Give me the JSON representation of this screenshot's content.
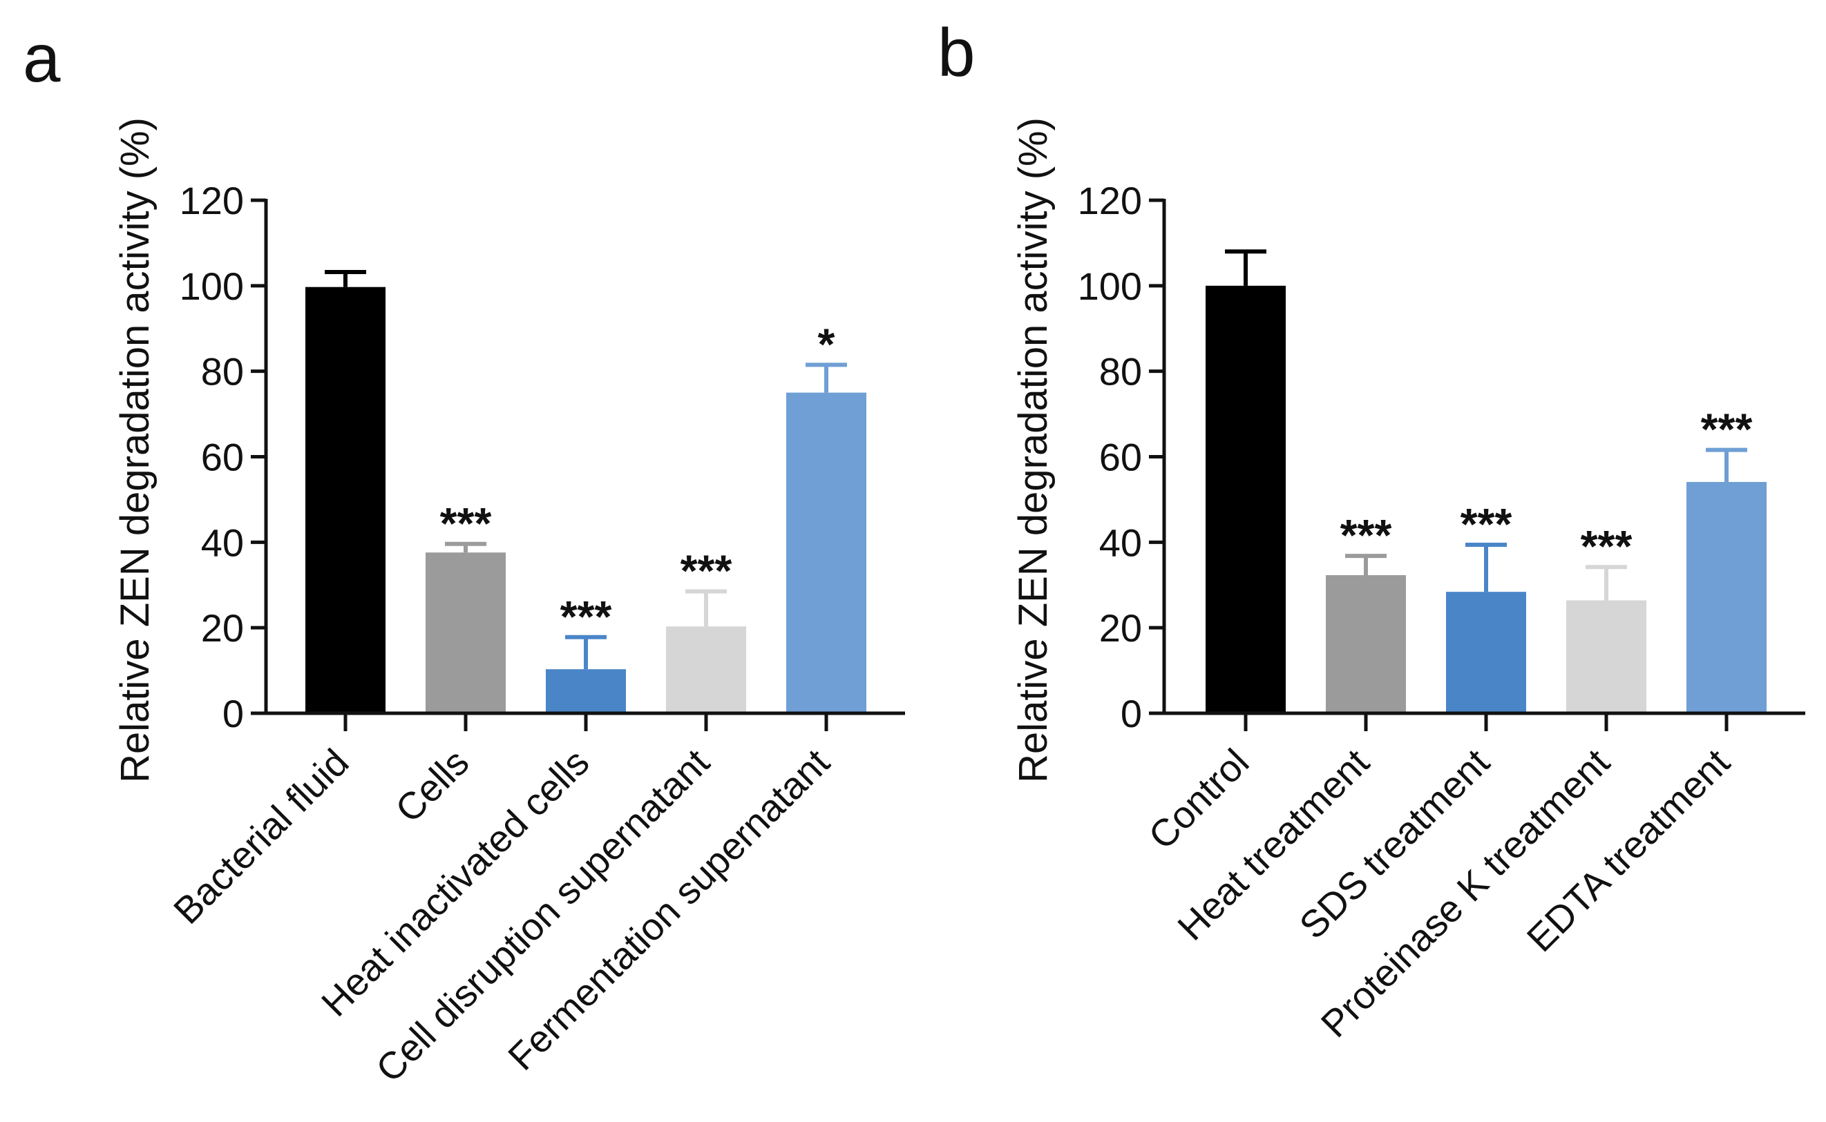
{
  "chart_data": [
    {
      "panel": "a",
      "type": "bar",
      "ylabel": "Relative ZEN degradation activity (%)",
      "xlabel": "",
      "ylim": [
        0,
        120
      ],
      "yticks": [
        "0",
        "20",
        "40",
        "60",
        "80",
        "100",
        "120"
      ],
      "categories": [
        "Bacterial fluid",
        "Cells",
        "Heat inactivated cells",
        "Cell disruption supernatant",
        "Fermentation supernatant"
      ],
      "values": [
        99.7,
        37.6,
        10.3,
        20.3,
        75.0
      ],
      "errors": [
        3.5,
        2.0,
        7.5,
        8.2,
        6.5
      ],
      "significance": [
        "",
        "***",
        "***",
        "***",
        "*"
      ],
      "colors": [
        "#000000",
        "#9b9b9b",
        "#4a85c8",
        "#d6d6d6",
        "#6f9fd4"
      ]
    },
    {
      "panel": "b",
      "type": "bar",
      "ylabel": "Relative ZEN degradation activity (%)",
      "xlabel": "",
      "ylim": [
        0,
        120
      ],
      "yticks": [
        "0",
        "20",
        "40",
        "60",
        "80",
        "100",
        "120"
      ],
      "categories": [
        "Control",
        "Heat treatment",
        "SDS treatment",
        "Proteinase K treatment",
        "EDTA treatment"
      ],
      "values": [
        100.0,
        32.3,
        28.4,
        26.4,
        54.1
      ],
      "errors": [
        8.0,
        4.5,
        11.0,
        7.8,
        7.5
      ],
      "significance": [
        "",
        "***",
        "***",
        "***",
        "***"
      ],
      "colors": [
        "#000000",
        "#9b9b9b",
        "#4a85c8",
        "#d6d6d6",
        "#6f9fd4"
      ]
    }
  ]
}
